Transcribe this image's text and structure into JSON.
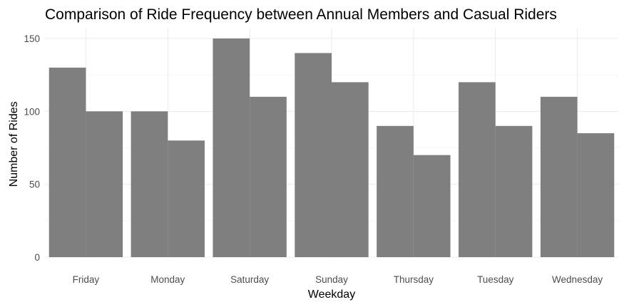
{
  "chart_data": {
    "type": "bar",
    "title": "Comparison of Ride Frequency between Annual Members and Casual Riders",
    "xlabel": "Weekday",
    "ylabel": "Number of Rides",
    "categories": [
      "Friday",
      "Monday",
      "Saturday",
      "Sunday",
      "Thursday",
      "Tuesday",
      "Wednesday"
    ],
    "series": [
      {
        "values": [
          130,
          100,
          150,
          140,
          90,
          120,
          110
        ]
      },
      {
        "values": [
          100,
          80,
          110,
          120,
          70,
          90,
          85
        ]
      }
    ],
    "ylim": [
      0,
      155
    ],
    "yticks": [
      0,
      50,
      100,
      150
    ],
    "grid": true,
    "bar_color": "#7f7f7f",
    "grid_color": "#ebebeb",
    "background": "#ffffff"
  }
}
